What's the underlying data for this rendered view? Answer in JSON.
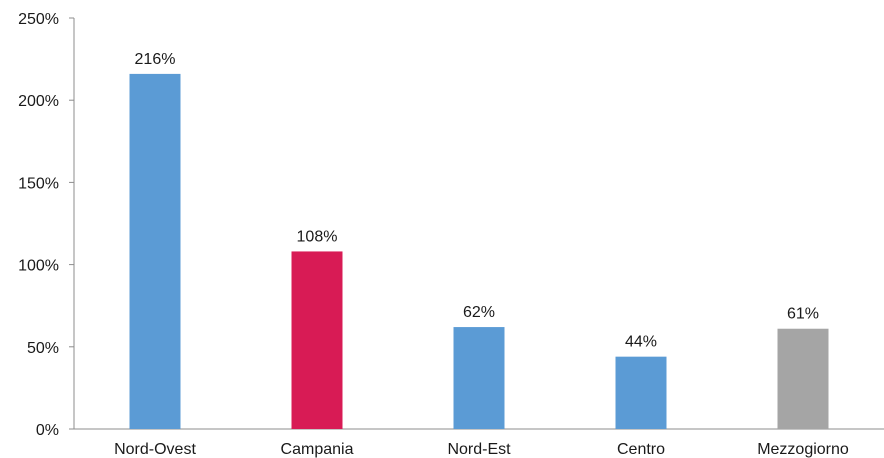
{
  "chart_data": {
    "type": "bar",
    "categories": [
      "Nord-Ovest",
      "Campania",
      "Nord-Est",
      "Centro",
      "Mezzogiorno"
    ],
    "values": [
      216,
      108,
      62,
      44,
      61
    ],
    "data_labels": [
      "216%",
      "108%",
      "62%",
      "44%",
      "61%"
    ],
    "colors": [
      "#5b9bd5",
      "#d81b55",
      "#5b9bd5",
      "#5b9bd5",
      "#a5a5a5"
    ],
    "ylim": [
      0,
      250
    ],
    "yticks": [
      0,
      50,
      100,
      150,
      200,
      250
    ],
    "ytick_labels": [
      "0%",
      "50%",
      "100%",
      "150%",
      "200%",
      "250%"
    ],
    "grid": false,
    "legend": "none",
    "title": "",
    "xlabel": "",
    "ylabel": ""
  }
}
